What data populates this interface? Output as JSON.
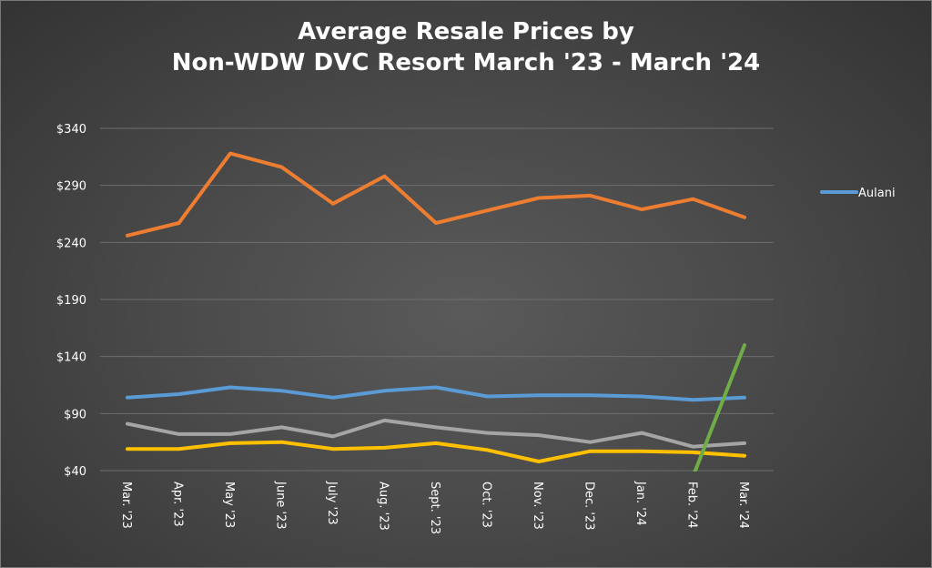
{
  "chart_data": {
    "type": "line",
    "title_line1": "Average Resale Prices by",
    "title_line2": "Non-WDW DVC Resort March '23 - March '24",
    "categories": [
      "Mar. '23",
      "Apr. '23",
      "May '23",
      "June '23",
      "July '23",
      "Aug. '23",
      "Sept. '23",
      "Oct. '23",
      "Nov. '23",
      "Dec. '23",
      "Jan. '24",
      "Feb. '24",
      "Mar. '24"
    ],
    "y_ticks": [
      "$40",
      "$90",
      "$140",
      "$190",
      "$240",
      "$290",
      "$340"
    ],
    "ylim": [
      40,
      340
    ],
    "grid": true,
    "legend_position": "right",
    "legend_label": "Aulani",
    "series": [
      {
        "name": "Aulani",
        "color": "#5B9BD5",
        "values": [
          104,
          107,
          113,
          110,
          104,
          110,
          113,
          105,
          106,
          106,
          105,
          102,
          104
        ]
      },
      {
        "color": "#ED7D31",
        "values": [
          246,
          257,
          318,
          306,
          274,
          298,
          257,
          268,
          279,
          281,
          269,
          278,
          262
        ]
      },
      {
        "color": "#A5A5A5",
        "values": [
          81,
          72,
          72,
          78,
          70,
          84,
          78,
          73,
          71,
          65,
          73,
          61,
          64
        ]
      },
      {
        "color": "#FFC000",
        "values": [
          59,
          59,
          64,
          65,
          59,
          60,
          64,
          58,
          48,
          57,
          57,
          56,
          53
        ]
      },
      {
        "color": "#70AD47",
        "values": [
          null,
          null,
          null,
          null,
          null,
          null,
          null,
          null,
          null,
          null,
          null,
          35,
          150
        ]
      }
    ]
  }
}
